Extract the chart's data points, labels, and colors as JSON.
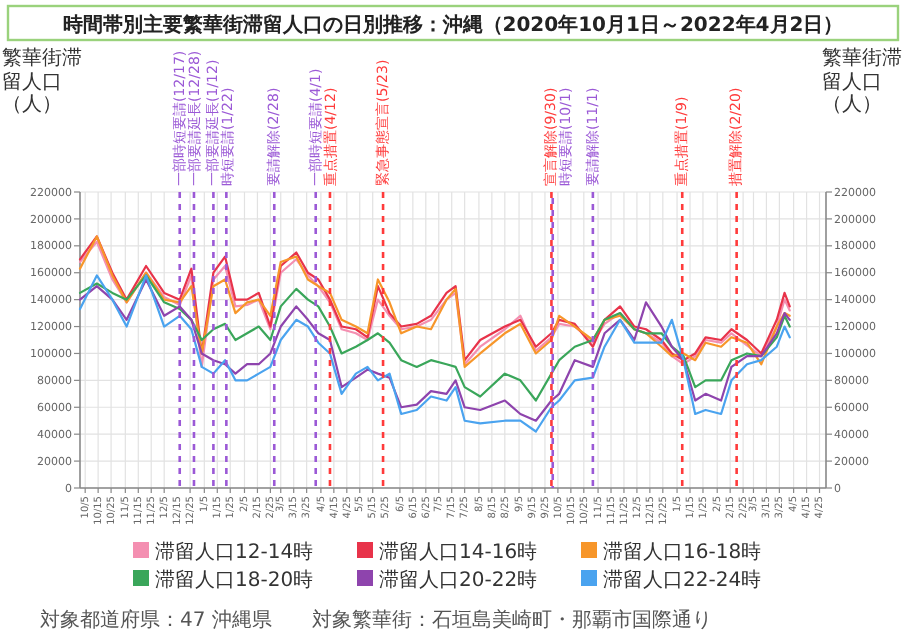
{
  "chart_data": {
    "type": "line",
    "title": "時間帯別主要繁華街滞留人口の日別推移：沖縄（2020年10月1日～2022年4月2日）",
    "ylabel": "繁華街滞留人口（人）",
    "y2label": "繁華街滞留人口（人）",
    "x": [
      "2020-10-01",
      "2020-10-14",
      "2020-10-26",
      "2020-11-06",
      "2020-11-21",
      "2020-12-05",
      "2020-12-17",
      "2020-12-26",
      "2021-01-03",
      "2021-01-12",
      "2021-01-21",
      "2021-01-29",
      "2021-02-07",
      "2021-02-16",
      "2021-02-25",
      "2021-03-05",
      "2021-03-17",
      "2021-03-26",
      "2021-04-03",
      "2021-04-12",
      "2021-04-21",
      "2021-05-02",
      "2021-05-11",
      "2021-05-19",
      "2021-05-28",
      "2021-06-06",
      "2021-06-18",
      "2021-06-29",
      "2021-07-11",
      "2021-07-18",
      "2021-07-25",
      "2021-08-06",
      "2021-08-25",
      "2021-09-06",
      "2021-09-18",
      "2021-09-30",
      "2021-10-06",
      "2021-10-18",
      "2021-11-01",
      "2021-11-10",
      "2021-11-22",
      "2021-12-03",
      "2021-12-12",
      "2021-12-24",
      "2022-01-01",
      "2022-01-10",
      "2022-01-19",
      "2022-01-27",
      "2022-02-08",
      "2022-02-16",
      "2022-02-28",
      "2022-03-11",
      "2022-03-23",
      "2022-03-29",
      "2022-04-02"
    ],
    "series": [
      {
        "name": "滞留人口12-14時",
        "color": "#f48fb1",
        "values": [
          168000,
          183000,
          155000,
          138000,
          160000,
          142000,
          136000,
          158000,
          90000,
          155000,
          165000,
          135000,
          136000,
          140000,
          118000,
          160000,
          170000,
          158000,
          150000,
          138000,
          118000,
          115000,
          110000,
          140000,
          128000,
          118000,
          120000,
          125000,
          140000,
          145000,
          92000,
          105000,
          118000,
          128000,
          102000,
          112000,
          122000,
          120000,
          108000,
          122000,
          130000,
          118000,
          115000,
          108000,
          98000,
          92000,
          98000,
          110000,
          108000,
          115000,
          106000,
          98000,
          120000,
          140000,
          132000
        ]
      },
      {
        "name": "滞留人口14-16時",
        "color": "#e8334a",
        "values": [
          170000,
          187000,
          160000,
          140000,
          165000,
          145000,
          140000,
          163000,
          100000,
          160000,
          172000,
          140000,
          140000,
          145000,
          120000,
          165000,
          175000,
          160000,
          155000,
          140000,
          120000,
          118000,
          112000,
          150000,
          130000,
          120000,
          122000,
          128000,
          145000,
          150000,
          95000,
          110000,
          120000,
          125000,
          105000,
          115000,
          125000,
          122000,
          105000,
          125000,
          135000,
          120000,
          118000,
          110000,
          100000,
          95000,
          100000,
          112000,
          110000,
          118000,
          110000,
          100000,
          125000,
          145000,
          135000
        ]
      },
      {
        "name": "滞留人口16-18時",
        "color": "#f7962a",
        "values": [
          163000,
          187000,
          158000,
          138000,
          160000,
          140000,
          138000,
          150000,
          100000,
          150000,
          155000,
          130000,
          138000,
          140000,
          128000,
          168000,
          172000,
          155000,
          150000,
          145000,
          125000,
          120000,
          115000,
          155000,
          138000,
          115000,
          120000,
          118000,
          140000,
          148000,
          90000,
          100000,
          115000,
          122000,
          100000,
          110000,
          128000,
          120000,
          110000,
          125000,
          128000,
          118000,
          115000,
          105000,
          98000,
          100000,
          95000,
          108000,
          105000,
          112000,
          108000,
          92000,
          120000,
          130000,
          128000
        ]
      },
      {
        "name": "滞留人口18-20時",
        "color": "#3aa65a",
        "values": [
          145000,
          152000,
          145000,
          140000,
          158000,
          138000,
          133000,
          125000,
          110000,
          118000,
          122000,
          110000,
          115000,
          120000,
          110000,
          135000,
          148000,
          140000,
          135000,
          120000,
          100000,
          105000,
          110000,
          115000,
          108000,
          95000,
          90000,
          95000,
          92000,
          90000,
          75000,
          68000,
          85000,
          80000,
          65000,
          85000,
          95000,
          105000,
          110000,
          125000,
          130000,
          118000,
          115000,
          115000,
          105000,
          98000,
          75000,
          80000,
          80000,
          95000,
          100000,
          98000,
          112000,
          128000,
          120000
        ]
      },
      {
        "name": "滞留人口20-22時",
        "color": "#8e44ad",
        "values": [
          140000,
          150000,
          140000,
          125000,
          155000,
          128000,
          135000,
          125000,
          100000,
          95000,
          92000,
          85000,
          92000,
          92000,
          100000,
          120000,
          135000,
          125000,
          115000,
          110000,
          75000,
          82000,
          88000,
          85000,
          82000,
          60000,
          62000,
          72000,
          70000,
          80000,
          60000,
          58000,
          65000,
          55000,
          50000,
          65000,
          70000,
          95000,
          90000,
          115000,
          125000,
          110000,
          138000,
          120000,
          105000,
          95000,
          65000,
          70000,
          65000,
          90000,
          98000,
          98000,
          115000,
          130000,
          125000
        ]
      },
      {
        "name": "滞留人口22-24時",
        "color": "#4aa3ef",
        "values": [
          133000,
          158000,
          140000,
          120000,
          158000,
          120000,
          128000,
          118000,
          90000,
          85000,
          95000,
          80000,
          80000,
          85000,
          90000,
          110000,
          125000,
          120000,
          108000,
          100000,
          70000,
          85000,
          90000,
          80000,
          85000,
          55000,
          58000,
          68000,
          65000,
          75000,
          50000,
          48000,
          50000,
          50000,
          42000,
          60000,
          65000,
          80000,
          82000,
          105000,
          125000,
          108000,
          108000,
          108000,
          125000,
          95000,
          55000,
          58000,
          55000,
          80000,
          92000,
          95000,
          105000,
          120000,
          112000
        ]
      }
    ],
    "xlim": [
      "2020-10-01",
      "2022-04-30"
    ],
    "xticks": [
      {
        "value": "2020-10-05",
        "label": "10/5"
      },
      {
        "value": "2020-10-15",
        "label": "10/15"
      },
      {
        "value": "2020-10-25",
        "label": "10/25"
      },
      {
        "value": "2020-11-05",
        "label": "11/5"
      },
      {
        "value": "2020-11-15",
        "label": "11/15"
      },
      {
        "value": "2020-11-25",
        "label": "11/25"
      },
      {
        "value": "2020-12-05",
        "label": "12/5"
      },
      {
        "value": "2020-12-15",
        "label": "12/15"
      },
      {
        "value": "2020-12-25",
        "label": "12/25"
      },
      {
        "value": "2021-01-05",
        "label": "1/5"
      },
      {
        "value": "2021-01-15",
        "label": "1/15"
      },
      {
        "value": "2021-01-25",
        "label": "1/25"
      },
      {
        "value": "2021-02-05",
        "label": "2/5"
      },
      {
        "value": "2021-02-15",
        "label": "2/15"
      },
      {
        "value": "2021-02-25",
        "label": "2/25"
      },
      {
        "value": "2021-03-05",
        "label": "3/5"
      },
      {
        "value": "2021-03-15",
        "label": "3/15"
      },
      {
        "value": "2021-03-25",
        "label": "3/25"
      },
      {
        "value": "2021-04-05",
        "label": "4/5"
      },
      {
        "value": "2021-04-15",
        "label": "4/15"
      },
      {
        "value": "2021-04-25",
        "label": "4/25"
      },
      {
        "value": "2021-05-05",
        "label": "5/5"
      },
      {
        "value": "2021-05-15",
        "label": "5/15"
      },
      {
        "value": "2021-05-25",
        "label": "5/25"
      },
      {
        "value": "2021-06-05",
        "label": "6/5"
      },
      {
        "value": "2021-06-15",
        "label": "6/15"
      },
      {
        "value": "2021-06-25",
        "label": "6/25"
      },
      {
        "value": "2021-07-05",
        "label": "7/5"
      },
      {
        "value": "2021-07-15",
        "label": "7/15"
      },
      {
        "value": "2021-07-25",
        "label": "7/25"
      },
      {
        "value": "2021-08-05",
        "label": "8/5"
      },
      {
        "value": "2021-08-15",
        "label": "8/15"
      },
      {
        "value": "2021-08-25",
        "label": "8/25"
      },
      {
        "value": "2021-09-05",
        "label": "9/5"
      },
      {
        "value": "2021-09-15",
        "label": "9/15"
      },
      {
        "value": "2021-09-25",
        "label": "9/25"
      },
      {
        "value": "2021-10-05",
        "label": "10/5"
      },
      {
        "value": "2021-10-15",
        "label": "10/15"
      },
      {
        "value": "2021-10-25",
        "label": "10/25"
      },
      {
        "value": "2021-11-05",
        "label": "11/5"
      },
      {
        "value": "2021-11-15",
        "label": "11/15"
      },
      {
        "value": "2021-11-25",
        "label": "11/25"
      },
      {
        "value": "2021-12-05",
        "label": "12/5"
      },
      {
        "value": "2021-12-15",
        "label": "12/15"
      },
      {
        "value": "2021-12-25",
        "label": "12/25"
      },
      {
        "value": "2022-01-05",
        "label": "1/5"
      },
      {
        "value": "2022-01-15",
        "label": "1/15"
      },
      {
        "value": "2022-01-25",
        "label": "1/25"
      },
      {
        "value": "2022-02-05",
        "label": "2/5"
      },
      {
        "value": "2022-02-15",
        "label": "2/15"
      },
      {
        "value": "2022-02-25",
        "label": "2/25"
      },
      {
        "value": "2022-03-05",
        "label": "3/5"
      },
      {
        "value": "2022-03-15",
        "label": "3/15"
      },
      {
        "value": "2022-03-25",
        "label": "3/25"
      },
      {
        "value": "2022-04-05",
        "label": "4/5"
      },
      {
        "value": "2022-04-15",
        "label": "4/15"
      },
      {
        "value": "2022-04-25",
        "label": "4/25"
      }
    ],
    "ylim": [
      0,
      220000
    ],
    "yticks": [
      0,
      20000,
      40000,
      60000,
      80000,
      100000,
      120000,
      140000,
      160000,
      180000,
      200000,
      220000
    ],
    "y2lim": [
      0,
      220000
    ],
    "y2ticks": [
      0,
      20000,
      40000,
      60000,
      80000,
      100000,
      120000,
      140000,
      160000,
      180000,
      200000,
      220000
    ],
    "ref_lines": [
      {
        "axis": "x",
        "value": "2020-12-17",
        "label": "一部時短要請(12/17)",
        "color": "#9b59d6",
        "line_style": "dashed"
      },
      {
        "axis": "x",
        "value": "2020-12-28",
        "label": "一部要請延長(12/28)",
        "color": "#9b59d6",
        "line_style": "dashed"
      },
      {
        "axis": "x",
        "value": "2021-01-12",
        "label": "一部要請延長(1/12)",
        "color": "#9b59d6",
        "line_style": "dashed"
      },
      {
        "axis": "x",
        "value": "2021-01-22",
        "label": "時短要請(1/22)",
        "color": "#9b59d6",
        "line_style": "dashed"
      },
      {
        "axis": "x",
        "value": "2021-02-28",
        "label": "要請解除(2/28)",
        "color": "#9b59d6",
        "line_style": "dashed"
      },
      {
        "axis": "x",
        "value": "2021-04-01",
        "label": "一部時短要請(4/1)",
        "color": "#9b59d6",
        "line_style": "dashed"
      },
      {
        "axis": "x",
        "value": "2021-04-12",
        "label": "重点措置(4/12)",
        "color": "#ff3b3b",
        "line_style": "dashed"
      },
      {
        "axis": "x",
        "value": "2021-05-23",
        "label": "緊急事態宣言(5/23)",
        "color": "#ff3b3b",
        "line_style": "dashed"
      },
      {
        "axis": "x",
        "value": "2021-09-30",
        "label": "宣言解除(9/30)",
        "color": "#ff3b3b",
        "line_style": "dashed"
      },
      {
        "axis": "x",
        "value": "2021-10-01",
        "label": "時短要請(10/1)",
        "color": "#9b59d6",
        "line_style": "dashed"
      },
      {
        "axis": "x",
        "value": "2021-11-01",
        "label": "要請解除(11/1)",
        "color": "#9b59d6",
        "line_style": "dashed"
      },
      {
        "axis": "x",
        "value": "2022-01-09",
        "label": "重点措置(1/9)",
        "color": "#ff3b3b",
        "line_style": "dashed"
      },
      {
        "axis": "x",
        "value": "2022-02-20",
        "label": "措置解除(2/20)",
        "color": "#ff3b3b",
        "line_style": "dashed"
      }
    ],
    "annotations": [
      "対象都道府県：47 沖縄県",
      "対象繁華街：石垣島美崎町・那覇市国際通り"
    ],
    "grid": true,
    "legend": "bottom",
    "line_style": "solid"
  }
}
